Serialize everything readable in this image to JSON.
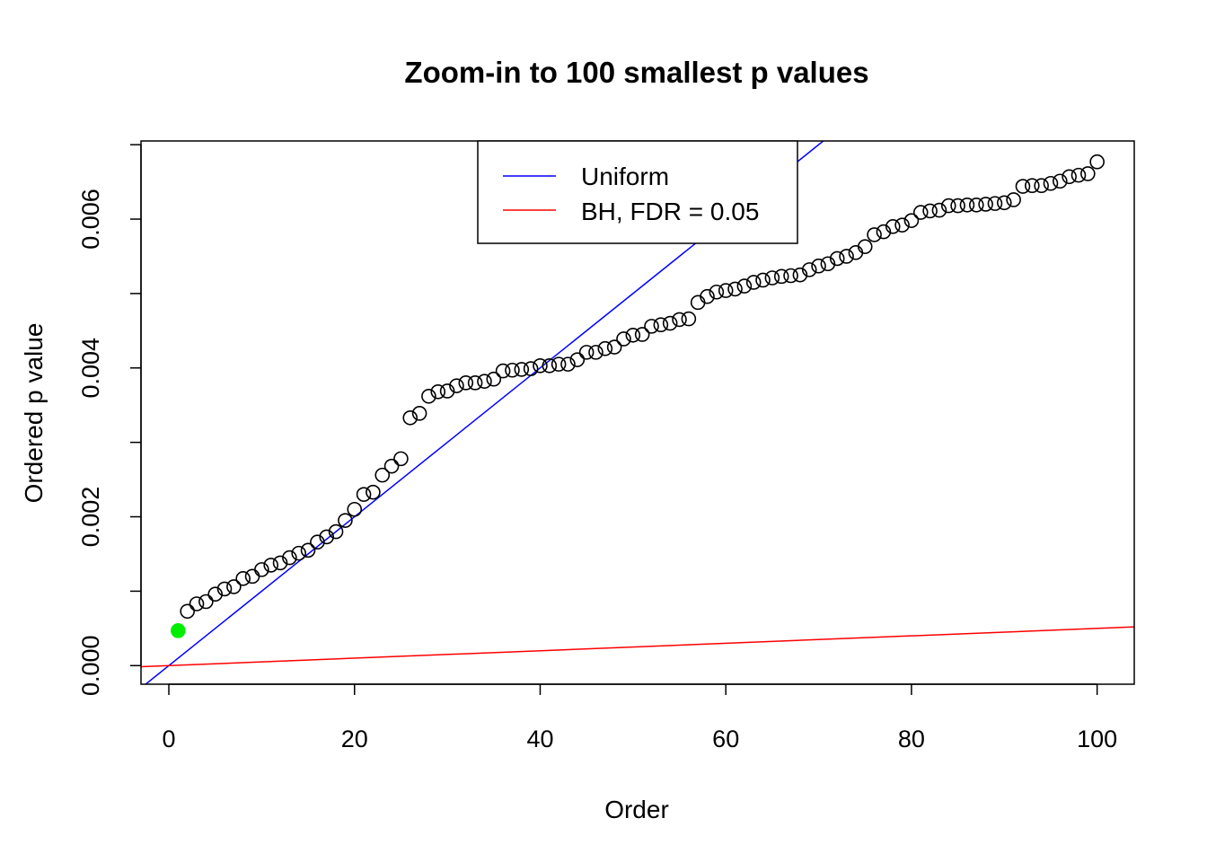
{
  "chart_data": {
    "type": "scatter",
    "title": "Zoom-in to 100 smallest p values",
    "xlabel": "Order",
    "ylabel": "Ordered p value",
    "xlim": [
      -3,
      104
    ],
    "ylim": [
      -0.00025,
      0.00705
    ],
    "x_ticks": [
      0,
      20,
      40,
      60,
      80,
      100
    ],
    "x_tick_labels": [
      "0",
      "20",
      "40",
      "60",
      "80",
      "100"
    ],
    "y_ticks": [
      0,
      0.001,
      0.002,
      0.003,
      0.004,
      0.005,
      0.006,
      0.007
    ],
    "y_tick_labels": [
      "0.000",
      "",
      "0.002",
      "",
      "0.004",
      "",
      "0.006",
      ""
    ],
    "grid": false,
    "legend": {
      "position": "top-center",
      "entries": [
        {
          "label": "Uniform",
          "color": "#0000ff"
        },
        {
          "label": "BH, FDR = 0.05",
          "color": "#ff0000"
        }
      ]
    },
    "lines": [
      {
        "name": "Uniform",
        "color": "#0000ff",
        "intercept": 0,
        "slope": 0.0001
      },
      {
        "name": "BH, FDR = 0.05",
        "color": "#ff0000",
        "intercept": 0,
        "slope": 5e-06
      }
    ],
    "highlight": {
      "index": 1,
      "color": "#00ee00"
    },
    "series": [
      {
        "name": "Ordered p values",
        "x": [
          1,
          2,
          3,
          4,
          5,
          6,
          7,
          8,
          9,
          10,
          11,
          12,
          13,
          14,
          15,
          16,
          17,
          18,
          19,
          20,
          21,
          22,
          23,
          24,
          25,
          26,
          27,
          28,
          29,
          30,
          31,
          32,
          33,
          34,
          35,
          36,
          37,
          38,
          39,
          40,
          41,
          42,
          43,
          44,
          45,
          46,
          47,
          48,
          49,
          50,
          51,
          52,
          53,
          54,
          55,
          56,
          57,
          58,
          59,
          60,
          61,
          62,
          63,
          64,
          65,
          66,
          67,
          68,
          69,
          70,
          71,
          72,
          73,
          74,
          75,
          76,
          77,
          78,
          79,
          80,
          81,
          82,
          83,
          84,
          85,
          86,
          87,
          88,
          89,
          90,
          91,
          92,
          93,
          94,
          95,
          96,
          97,
          98,
          99,
          100
        ],
        "values": [
          0.00047,
          0.00073,
          0.00083,
          0.00086,
          0.00096,
          0.00103,
          0.00106,
          0.00117,
          0.0012,
          0.00129,
          0.00135,
          0.00138,
          0.00145,
          0.00151,
          0.00155,
          0.00166,
          0.00173,
          0.0018,
          0.00195,
          0.0021,
          0.0023,
          0.00233,
          0.00256,
          0.00268,
          0.00278,
          0.00333,
          0.00339,
          0.00362,
          0.00368,
          0.00369,
          0.00376,
          0.0038,
          0.0038,
          0.00382,
          0.00385,
          0.00396,
          0.00397,
          0.00398,
          0.00399,
          0.00403,
          0.00403,
          0.00405,
          0.00405,
          0.00411,
          0.00421,
          0.00421,
          0.00426,
          0.00428,
          0.00439,
          0.00444,
          0.00445,
          0.00456,
          0.00458,
          0.0046,
          0.00465,
          0.00466,
          0.00488,
          0.00496,
          0.00502,
          0.00504,
          0.00506,
          0.0051,
          0.00515,
          0.00518,
          0.00521,
          0.00523,
          0.00524,
          0.00525,
          0.00532,
          0.00537,
          0.0054,
          0.00547,
          0.0055,
          0.00555,
          0.00563,
          0.00579,
          0.00583,
          0.0059,
          0.00592,
          0.00598,
          0.00609,
          0.00611,
          0.00612,
          0.00618,
          0.00618,
          0.00619,
          0.00619,
          0.0062,
          0.00621,
          0.00622,
          0.00626,
          0.00644,
          0.00645,
          0.00645,
          0.00648,
          0.00651,
          0.00657,
          0.00659,
          0.00661,
          0.00677
        ]
      }
    ]
  }
}
